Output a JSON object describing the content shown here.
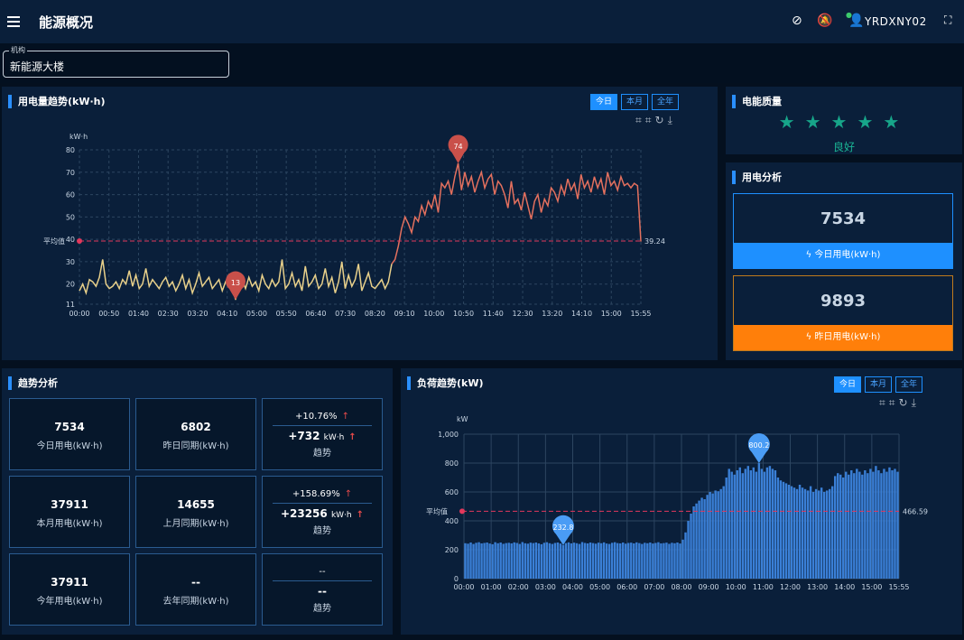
{
  "header": {
    "title": "能源概况",
    "user": "YRDXNY02",
    "icons": [
      "menu-icon",
      "wifi-off-icon",
      "bell-off-icon",
      "user-icon",
      "fullscreen-icon"
    ]
  },
  "org": {
    "label": "机构",
    "value": "新能源大楼"
  },
  "energy_panel": {
    "title": "用电量趋势(kW·h)",
    "tabs": [
      "今日",
      "本月",
      "全年"
    ],
    "active_tab": "今日",
    "tools": [
      "crop-icon",
      "crop-reset-icon",
      "refresh-icon",
      "download-icon"
    ]
  },
  "quality": {
    "title": "电能质量",
    "stars": 5,
    "rating_text": "良好"
  },
  "analysis": {
    "title": "用电分析",
    "today_value": "7534",
    "today_label": "今日用电(kW·h)",
    "yesterday_value": "9893",
    "yesterday_label": "昨日用电(kW·h)"
  },
  "trend": {
    "title": "趋势分析",
    "rows": [
      {
        "v1": "7534",
        "l1": "今日用电(kW·h)",
        "v2": "6802",
        "l2": "昨日同期(kW·h)",
        "pct": "+10.76%",
        "delta": "+732",
        "unit": "kW·h",
        "trend_label": "趋势"
      },
      {
        "v1": "37911",
        "l1": "本月用电(kW·h)",
        "v2": "14655",
        "l2": "上月同期(kW·h)",
        "pct": "+158.69%",
        "delta": "+23256",
        "unit": "kW·h",
        "trend_label": "趋势"
      },
      {
        "v1": "37911",
        "l1": "今年用电(kW·h)",
        "v2": "--",
        "l2": "去年同期(kW·h)",
        "pct": "--",
        "delta": "--",
        "unit": "",
        "trend_label": "趋势"
      }
    ]
  },
  "load_panel": {
    "title": "负荷趋势(kW)",
    "tabs": [
      "今日",
      "本月",
      "全年"
    ],
    "active_tab": "今日"
  },
  "chart_data": [
    {
      "type": "line",
      "ylabel": "kW·h",
      "ylim": [
        11,
        80
      ],
      "yticks": [
        11,
        20,
        30,
        40,
        50,
        60,
        70,
        80
      ],
      "xticks": [
        "00:00",
        "00:50",
        "01:40",
        "02:30",
        "03:20",
        "04:10",
        "05:00",
        "05:50",
        "06:40",
        "07:30",
        "08:20",
        "09:10",
        "10:00",
        "10:50",
        "11:40",
        "12:30",
        "13:20",
        "14:10",
        "15:00",
        "15:55"
      ],
      "avg_label": "平均值",
      "avg_value": "39.24",
      "max_label": "74",
      "min_label": "13",
      "series": [
        {
          "values": [
            17,
            20,
            16,
            22,
            21,
            19,
            23,
            31,
            20,
            18,
            19,
            21,
            18,
            22,
            20,
            26,
            19,
            24,
            18,
            20,
            27,
            19,
            22,
            20,
            18,
            21,
            23,
            19,
            21,
            17,
            20,
            24,
            18,
            22,
            16,
            20,
            25,
            19,
            21,
            23,
            18,
            20,
            22,
            17,
            21,
            24,
            19,
            13,
            20,
            22,
            18,
            23,
            19,
            21,
            17,
            24,
            20,
            18,
            22,
            19,
            21,
            31,
            18,
            20,
            25,
            19,
            22,
            17,
            28,
            19,
            21,
            24,
            18,
            20,
            27,
            19,
            23,
            16,
            21,
            30,
            18,
            24,
            19,
            22,
            29,
            17,
            21,
            25,
            19,
            18,
            20,
            22,
            18,
            21,
            29,
            31,
            37,
            45,
            50,
            47,
            43,
            50,
            48,
            55,
            51,
            57,
            54,
            60,
            52,
            65,
            63,
            66,
            60,
            68,
            74,
            62,
            70,
            64,
            68,
            61,
            66,
            70,
            63,
            67,
            69,
            60,
            66,
            64,
            60,
            54,
            66,
            56,
            58,
            53,
            61,
            55,
            49,
            57,
            60,
            52,
            58,
            55,
            63,
            61,
            57,
            64,
            60,
            67,
            62,
            65,
            58,
            69,
            63,
            66,
            61,
            68,
            63,
            67,
            60,
            70,
            64,
            66,
            62,
            68,
            64,
            65,
            63,
            65,
            64,
            39
          ]
        }
      ]
    },
    {
      "type": "bar",
      "ylabel": "kW",
      "ylim": [
        0,
        1000
      ],
      "yticks": [
        "0",
        "200",
        "400",
        "600",
        "800",
        "1,000"
      ],
      "xticks": [
        "00:00",
        "01:00",
        "02:00",
        "03:00",
        "04:00",
        "05:00",
        "06:00",
        "07:00",
        "08:00",
        "09:00",
        "10:00",
        "11:00",
        "12:00",
        "13:00",
        "14:00",
        "15:00",
        "15:55"
      ],
      "avg_label": "平均值",
      "avg_value": "466.59",
      "max_label": "800.2",
      "min_label": "232.8",
      "series": [
        {
          "values": [
            245,
            242,
            250,
            240,
            248,
            252,
            244,
            247,
            250,
            243,
            238,
            252,
            245,
            250,
            241,
            246,
            248,
            244,
            251,
            247,
            240,
            253,
            245,
            242,
            249,
            246,
            250,
            244,
            238,
            248,
            252,
            245,
            240,
            247,
            250,
            243,
            232.8,
            246,
            251,
            244,
            249,
            245,
            240,
            253,
            247,
            244,
            250,
            246,
            242,
            249,
            245,
            251,
            243,
            240,
            248,
            252,
            246,
            244,
            250,
            242,
            247,
            249,
            244,
            251,
            246,
            240,
            248,
            245,
            250,
            243,
            247,
            252,
            244,
            246,
            249,
            241,
            248,
            245,
            250,
            243,
            270,
            320,
            400,
            450,
            500,
            520,
            540,
            560,
            550,
            580,
            600,
            590,
            610,
            605,
            620,
            640,
            700,
            760,
            740,
            720,
            750,
            770,
            730,
            760,
            780,
            750,
            770,
            740,
            800.2,
            760,
            740,
            770,
            780,
            760,
            750,
            700,
            680,
            670,
            660,
            650,
            640,
            630,
            620,
            650,
            630,
            620,
            610,
            640,
            600,
            620,
            610,
            630,
            600,
            610,
            620,
            640,
            710,
            730,
            720,
            700,
            740,
            720,
            750,
            730,
            760,
            740,
            720,
            750,
            730,
            760,
            740,
            780,
            750,
            730,
            760,
            740,
            770,
            750,
            760,
            740
          ]
        }
      ]
    }
  ]
}
